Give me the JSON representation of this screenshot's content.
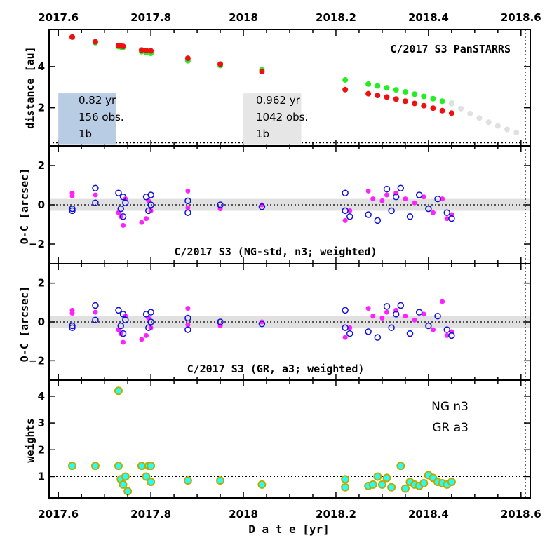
{
  "chart_data": {
    "type": "scatter",
    "x_axis": {
      "label": "D a t e [yr]",
      "range": [
        2017.58,
        2018.62
      ],
      "tick_labels": [
        "2017.6",
        "2017.8",
        "2018",
        "2018.2",
        "2018.4",
        "2018.6"
      ],
      "ticks": [
        2017.6,
        2017.8,
        2018.0,
        2018.2,
        2018.4,
        2018.6
      ]
    },
    "colors": {
      "green": "#22ee22",
      "red": "#ee1111",
      "grey": "#e0e0e0",
      "magenta": "#ff22ff",
      "blue": "#1111dd",
      "cyan": "#22ffff",
      "olive": "#bbaa00",
      "blue_box": "#b8cce4",
      "grey_box": "#e6e6e6",
      "band": "#e0e0e0"
    },
    "panels": [
      {
        "id": "distance",
        "ylabel": "distance [au]",
        "ylim": [
          0.15,
          5.8
        ],
        "yticks": [
          2,
          4
        ],
        "title": "C/2017 S3 PanSTARRS",
        "reference_line": 0.3,
        "boxes": [
          {
            "lines": [
              "0.82 yr",
              "156 obs.",
              "1b"
            ],
            "x_range": [
              2017.6,
              2017.725
            ],
            "y_range": [
              0.2,
              2.7
            ],
            "color": "blue_box"
          },
          {
            "lines": [
              "0.962 yr",
              "1042 obs.",
              "1b"
            ],
            "x_range": [
              2018.0,
              2018.125
            ],
            "y_range": [
              0.2,
              2.7
            ],
            "color": "grey_box"
          }
        ],
        "series": [
          {
            "name": "heliocentric distance (past)",
            "color": "green",
            "x": [
              2017.63,
              2017.68,
              2017.73,
              2017.735,
              2017.74,
              2017.78,
              2017.79,
              2017.8,
              2017.88,
              2017.95,
              2018.04
            ],
            "y": [
              5.44,
              5.16,
              4.97,
              4.95,
              4.93,
              4.72,
              4.68,
              4.64,
              4.28,
              4.05,
              3.84
            ]
          },
          {
            "name": "geocentric distance (past)",
            "color": "red",
            "x": [
              2017.63,
              2017.68,
              2017.73,
              2017.735,
              2017.74,
              2017.78,
              2017.79,
              2017.8,
              2017.88,
              2017.95,
              2018.04
            ],
            "y": [
              5.43,
              5.2,
              5.02,
              5.0,
              4.98,
              4.8,
              4.78,
              4.76,
              4.4,
              4.12,
              3.75
            ]
          },
          {
            "name": "heliocentric distance",
            "color": "green",
            "x": [
              2018.22,
              2018.27,
              2018.29,
              2018.31,
              2018.33,
              2018.35,
              2018.37,
              2018.39,
              2018.41,
              2018.43,
              2018.45
            ],
            "y": [
              3.35,
              3.15,
              3.06,
              2.97,
              2.87,
              2.77,
              2.66,
              2.55,
              2.44,
              2.32,
              2.21
            ]
          },
          {
            "name": "geocentric distance",
            "color": "red",
            "x": [
              2018.22,
              2018.27,
              2018.29,
              2018.31,
              2018.33,
              2018.35,
              2018.37,
              2018.39,
              2018.41,
              2018.43,
              2018.45
            ],
            "y": [
              2.88,
              2.68,
              2.6,
              2.52,
              2.42,
              2.32,
              2.21,
              2.1,
              1.98,
              1.86,
              1.74
            ]
          },
          {
            "name": "future distance",
            "color": "grey",
            "x": [
              2018.45,
              2018.47,
              2018.49,
              2018.51,
              2018.53,
              2018.55,
              2018.57,
              2018.59
            ],
            "y": [
              2.2,
              1.96,
              1.72,
              1.5,
              1.3,
              1.12,
              0.95,
              0.8
            ]
          }
        ]
      },
      {
        "id": "oc_ng",
        "ylabel": "O-C [arcsec]",
        "ylim": [
          -3.0,
          3.0
        ],
        "yticks": [
          -2,
          0,
          2
        ],
        "title": "C/2017 S3 (NG-std, n3; weighted)",
        "band": [
          -0.3,
          0.3
        ],
        "zero_line": 0,
        "series": [
          {
            "name": "Dec residuals",
            "color": "magenta",
            "marker": "filled",
            "x": [
              2017.63,
              2017.63,
              2017.68,
              2017.73,
              2017.735,
              2017.74,
              2017.745,
              2017.79,
              2017.795,
              2017.8,
              2017.78,
              2017.88,
              2017.88,
              2017.95,
              2018.04,
              2018.22,
              2018.23,
              2018.27,
              2018.28,
              2018.3,
              2018.31,
              2018.33,
              2018.35,
              2018.37,
              2018.39,
              2018.41,
              2018.43,
              2018.44,
              2018.45
            ],
            "y": [
              0.6,
              0.45,
              0.5,
              -0.4,
              -0.6,
              -1.05,
              0.3,
              -0.7,
              0.2,
              -0.3,
              -0.9,
              0.7,
              -0.15,
              -0.2,
              0.0,
              -0.8,
              -0.3,
              0.7,
              0.3,
              0.2,
              0.5,
              0.6,
              0.3,
              0.1,
              0.4,
              -0.4,
              0.3,
              -0.7,
              -0.5
            ]
          },
          {
            "name": "RA residuals",
            "color": "blue",
            "marker": "open",
            "x": [
              2017.63,
              2017.63,
              2017.68,
              2017.68,
              2017.73,
              2017.735,
              2017.74,
              2017.74,
              2017.745,
              2017.79,
              2017.795,
              2017.8,
              2017.8,
              2017.88,
              2017.88,
              2017.95,
              2018.04,
              2018.22,
              2018.22,
              2018.23,
              2018.27,
              2018.29,
              2018.31,
              2018.32,
              2018.33,
              2018.34,
              2018.36,
              2018.38,
              2018.4,
              2018.42,
              2018.44,
              2018.45
            ],
            "y": [
              -0.3,
              -0.2,
              0.85,
              0.1,
              0.6,
              -0.2,
              0.4,
              -0.6,
              0.1,
              0.4,
              -0.3,
              0.5,
              0.0,
              -0.4,
              0.2,
              0.0,
              -0.1,
              0.6,
              -0.3,
              -0.6,
              -0.5,
              -0.8,
              0.8,
              -0.3,
              0.4,
              0.85,
              -0.6,
              0.5,
              -0.2,
              0.3,
              -0.4,
              -0.7
            ]
          }
        ]
      },
      {
        "id": "oc_gr",
        "ylabel": "O-C [arcsec]",
        "ylim": [
          -3.0,
          3.0
        ],
        "yticks": [
          -2,
          0,
          2
        ],
        "title": "C/2017 S3 (GR, a3; weighted)",
        "band": [
          -0.3,
          0.3
        ],
        "zero_line": 0,
        "series": [
          {
            "name": "Dec residuals",
            "color": "magenta",
            "marker": "filled",
            "x": [
              2017.63,
              2017.63,
              2017.68,
              2017.73,
              2017.735,
              2017.74,
              2017.745,
              2017.79,
              2017.795,
              2017.8,
              2017.78,
              2017.88,
              2017.88,
              2017.95,
              2018.04,
              2018.22,
              2018.23,
              2018.27,
              2018.28,
              2018.3,
              2018.31,
              2018.33,
              2018.35,
              2018.37,
              2018.39,
              2018.41,
              2018.43,
              2018.44,
              2018.45
            ],
            "y": [
              0.6,
              0.45,
              0.5,
              -0.4,
              -0.6,
              -1.05,
              0.3,
              -0.7,
              0.2,
              -0.3,
              -0.9,
              0.7,
              -0.15,
              -0.2,
              0.0,
              -0.8,
              -0.3,
              0.7,
              0.3,
              0.2,
              0.5,
              0.6,
              0.3,
              0.1,
              0.4,
              -0.4,
              1.05,
              -0.7,
              -0.5
            ]
          },
          {
            "name": "RA residuals",
            "color": "blue",
            "marker": "open",
            "x": [
              2017.63,
              2017.63,
              2017.68,
              2017.68,
              2017.73,
              2017.735,
              2017.74,
              2017.74,
              2017.745,
              2017.79,
              2017.795,
              2017.8,
              2017.8,
              2017.88,
              2017.88,
              2017.95,
              2018.04,
              2018.22,
              2018.22,
              2018.23,
              2018.27,
              2018.29,
              2018.31,
              2018.32,
              2018.33,
              2018.34,
              2018.36,
              2018.38,
              2018.4,
              2018.42,
              2018.44,
              2018.45
            ],
            "y": [
              -0.3,
              -0.2,
              0.85,
              0.1,
              0.6,
              -0.2,
              0.4,
              -0.6,
              0.1,
              0.4,
              -0.3,
              0.5,
              0.0,
              -0.4,
              0.2,
              0.0,
              -0.1,
              0.6,
              -0.3,
              -0.6,
              -0.5,
              -0.8,
              0.8,
              -0.3,
              0.4,
              0.85,
              -0.6,
              0.5,
              -0.2,
              0.3,
              -0.4,
              -0.7
            ]
          }
        ]
      },
      {
        "id": "weights",
        "ylabel": "weights",
        "ylim": [
          0.2,
          4.6
        ],
        "yticks": [
          1,
          2,
          3,
          4
        ],
        "reference_line": 1,
        "legend": [
          {
            "label": "NG n3",
            "color": "olive"
          },
          {
            "label": "GR a3",
            "color": "cyan"
          }
        ],
        "series": [
          {
            "name": "weights",
            "color": "cyan",
            "edge": "olive",
            "x": [
              2017.63,
              2017.68,
              2017.73,
              2017.73,
              2017.735,
              2017.74,
              2017.745,
              2017.75,
              2017.78,
              2017.79,
              2017.795,
              2017.8,
              2017.8,
              2017.88,
              2017.95,
              2018.04,
              2018.22,
              2018.22,
              2018.27,
              2018.28,
              2018.29,
              2018.3,
              2018.31,
              2018.32,
              2018.34,
              2018.35,
              2018.36,
              2018.37,
              2018.38,
              2018.39,
              2018.4,
              2018.41,
              2018.42,
              2018.43,
              2018.44,
              2018.45
            ],
            "y": [
              1.4,
              1.4,
              4.2,
              1.4,
              0.9,
              0.7,
              1.0,
              0.45,
              1.4,
              1.0,
              1.4,
              1.4,
              0.8,
              0.85,
              0.85,
              0.7,
              0.9,
              0.6,
              0.65,
              0.7,
              1.0,
              0.7,
              0.95,
              0.6,
              1.4,
              0.55,
              0.8,
              0.7,
              0.65,
              0.75,
              1.05,
              0.95,
              0.8,
              0.75,
              0.7,
              0.8
            ]
          }
        ]
      }
    ]
  }
}
